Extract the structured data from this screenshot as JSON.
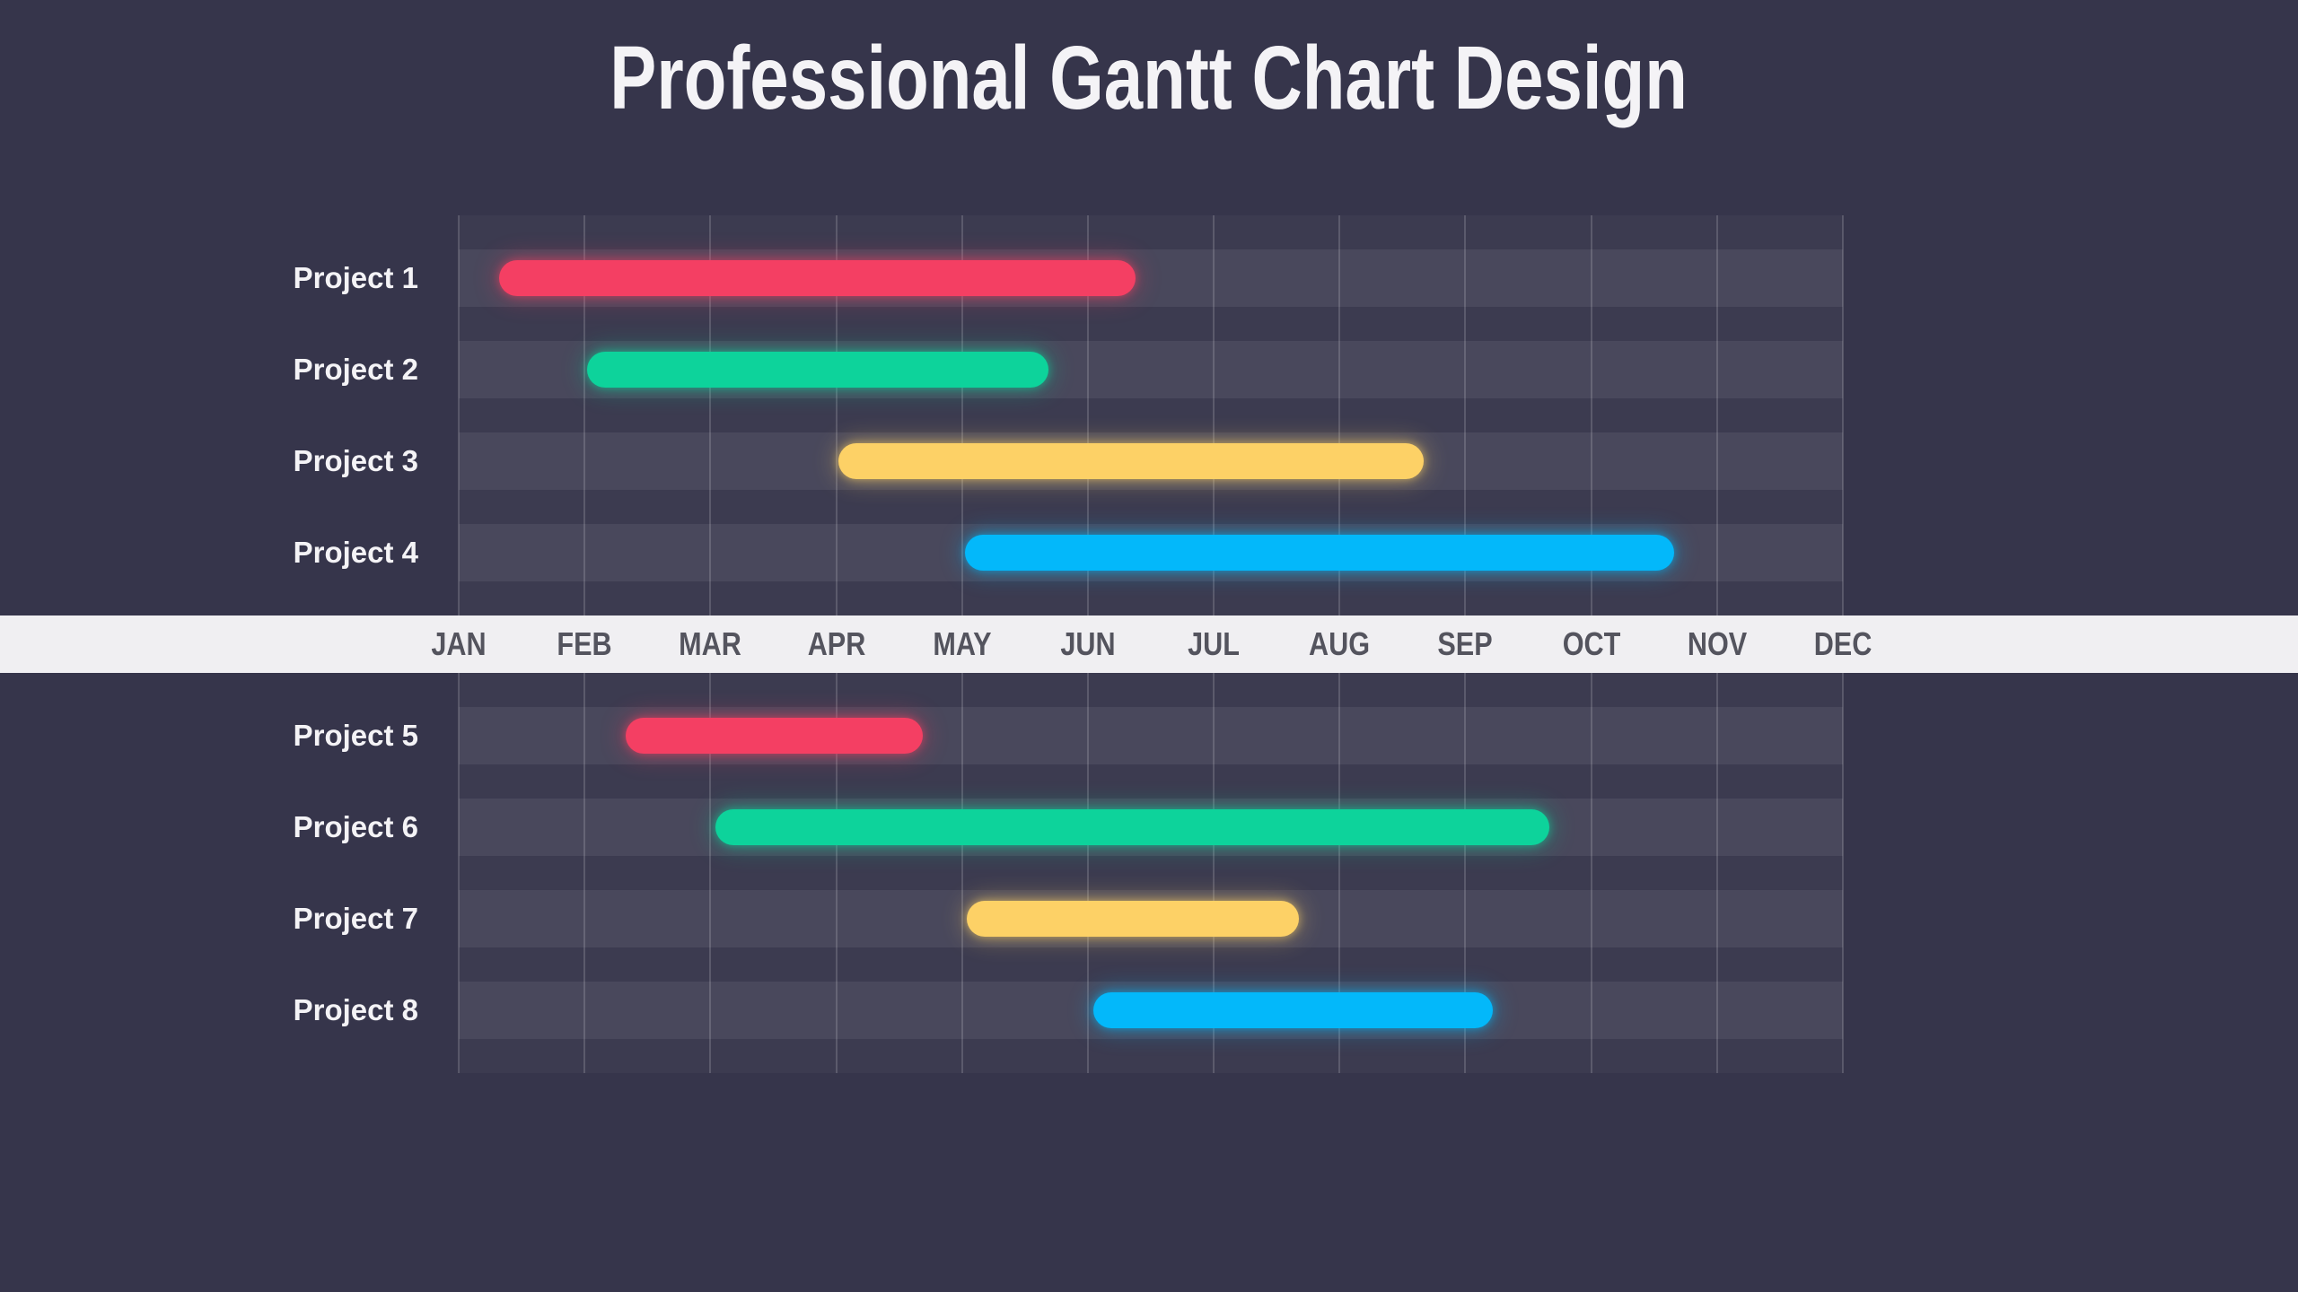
{
  "chart_data": {
    "type": "gantt",
    "title": "Professional Gantt Chart Design",
    "months": [
      "JAN",
      "FEB",
      "MAR",
      "APR",
      "MAY",
      "JUN",
      "JUL",
      "AUG",
      "SEP",
      "OCT",
      "NOV",
      "DEC"
    ],
    "axis": {
      "position": "middle-strip",
      "units": "months",
      "gridlines": 12
    },
    "sections": {
      "above_axis": [
        "Project 1",
        "Project 2",
        "Project 3",
        "Project 4"
      ],
      "below_axis": [
        "Project 5",
        "Project 6",
        "Project 7",
        "Project 8"
      ]
    },
    "bars": [
      {
        "label": "Project 1",
        "color": "red",
        "start_month": 0.32,
        "end_month": 5.38
      },
      {
        "label": "Project 2",
        "color": "green",
        "start_month": 1.02,
        "end_month": 4.69
      },
      {
        "label": "Project 3",
        "color": "yellow",
        "start_month": 3.02,
        "end_month": 7.67
      },
      {
        "label": "Project 4",
        "color": "blue",
        "start_month": 4.02,
        "end_month": 9.66
      },
      {
        "label": "Project 5",
        "color": "red",
        "start_month": 1.33,
        "end_month": 3.69
      },
      {
        "label": "Project 6",
        "color": "green",
        "start_month": 2.04,
        "end_month": 8.67
      },
      {
        "label": "Project 7",
        "color": "yellow",
        "start_month": 4.04,
        "end_month": 6.68
      },
      {
        "label": "Project 8",
        "color": "blue",
        "start_month": 5.04,
        "end_month": 8.22
      }
    ]
  },
  "colors": {
    "background": "#36354b",
    "plot_tint": "rgba(255,255,255,0.03)",
    "row_band": "rgba(255,255,255,0.07)",
    "gridline": "rgba(255,255,255,0.16)",
    "axis_strip_bg": "#f0eff2",
    "axis_label": "#54545e",
    "row_label": "#f4f3f6",
    "title": "#f4f3f6",
    "bar_palette": {
      "red": "#f43f63",
      "green": "#0dd39b",
      "yellow": "#fdd166",
      "blue": "#03b8fa"
    }
  }
}
